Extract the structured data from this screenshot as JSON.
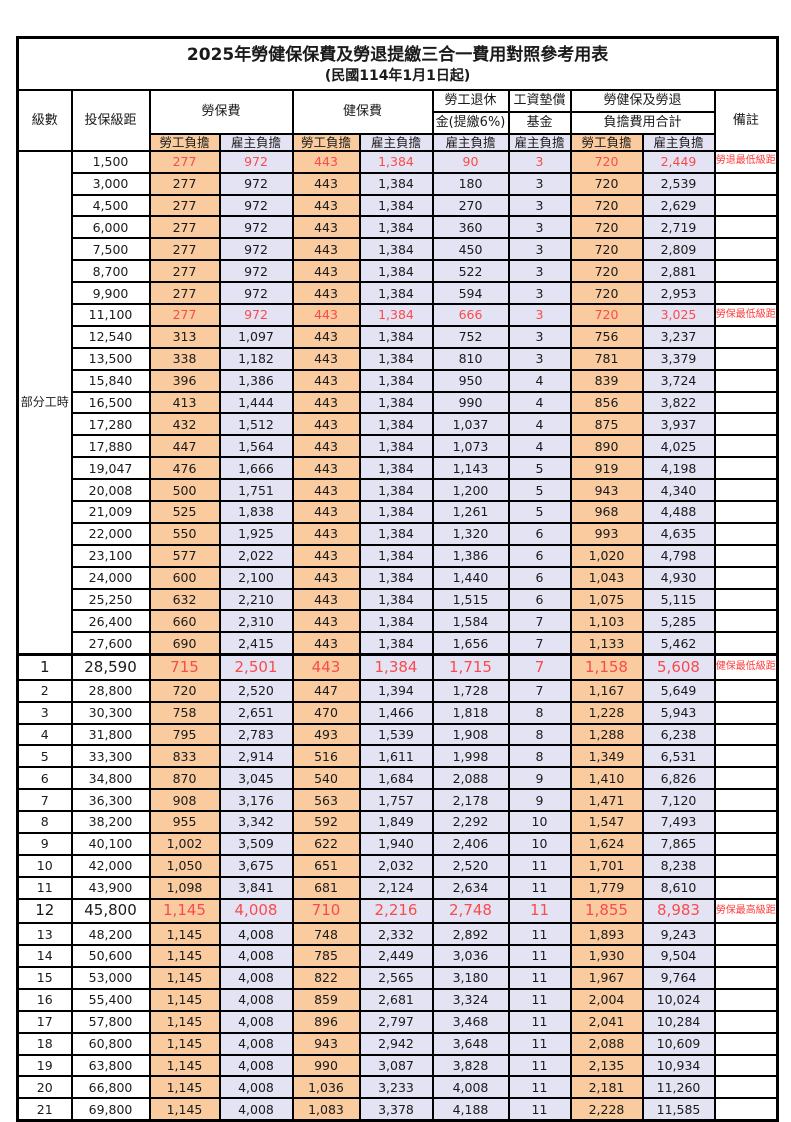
{
  "title": "2025年勞健保保費及勞退提繳三合一費用對照參考用表",
  "subtitle": "(民國114年1月1日起)",
  "header": {
    "level": "級數",
    "bracket": "投保級距",
    "labor_insurance": "勞保費",
    "health_insurance": "健保費",
    "pension_line1": "勞工退休",
    "pension_line2": "金(提繳6%)",
    "wage_fund_line1": "工資墊償",
    "wage_fund_line2": "基金",
    "total_line1": "勞健保及勞退",
    "total_line2": "負擔費用合計",
    "remark": "備註",
    "employee": "勞工負擔",
    "employer": "雇主負擔"
  },
  "part_time_label": "部分工時",
  "colors": {
    "employee_bg": "#F9CB9E",
    "employer_bg": "#E4E3F4",
    "highlight_red": "#FA4B4B",
    "remark_red": "#FF3A3A",
    "border": "#000000"
  },
  "rows": [
    {
      "level": "",
      "bracket": "1,500",
      "li_emp": "277",
      "li_er": "972",
      "hi_emp": "443",
      "hi_er": "1,384",
      "pension": "90",
      "fund": "3",
      "tot_emp": "720",
      "tot_er": "2,449",
      "remark": "勞退最低級距",
      "highlight": true,
      "large": false
    },
    {
      "level": "",
      "bracket": "3,000",
      "li_emp": "277",
      "li_er": "972",
      "hi_emp": "443",
      "hi_er": "1,384",
      "pension": "180",
      "fund": "3",
      "tot_emp": "720",
      "tot_er": "2,539",
      "remark": "",
      "highlight": false,
      "large": false
    },
    {
      "level": "",
      "bracket": "4,500",
      "li_emp": "277",
      "li_er": "972",
      "hi_emp": "443",
      "hi_er": "1,384",
      "pension": "270",
      "fund": "3",
      "tot_emp": "720",
      "tot_er": "2,629",
      "remark": "",
      "highlight": false,
      "large": false
    },
    {
      "level": "",
      "bracket": "6,000",
      "li_emp": "277",
      "li_er": "972",
      "hi_emp": "443",
      "hi_er": "1,384",
      "pension": "360",
      "fund": "3",
      "tot_emp": "720",
      "tot_er": "2,719",
      "remark": "",
      "highlight": false,
      "large": false
    },
    {
      "level": "",
      "bracket": "7,500",
      "li_emp": "277",
      "li_er": "972",
      "hi_emp": "443",
      "hi_er": "1,384",
      "pension": "450",
      "fund": "3",
      "tot_emp": "720",
      "tot_er": "2,809",
      "remark": "",
      "highlight": false,
      "large": false
    },
    {
      "level": "",
      "bracket": "8,700",
      "li_emp": "277",
      "li_er": "972",
      "hi_emp": "443",
      "hi_er": "1,384",
      "pension": "522",
      "fund": "3",
      "tot_emp": "720",
      "tot_er": "2,881",
      "remark": "",
      "highlight": false,
      "large": false
    },
    {
      "level": "",
      "bracket": "9,900",
      "li_emp": "277",
      "li_er": "972",
      "hi_emp": "443",
      "hi_er": "1,384",
      "pension": "594",
      "fund": "3",
      "tot_emp": "720",
      "tot_er": "2,953",
      "remark": "",
      "highlight": false,
      "large": false
    },
    {
      "level": "",
      "bracket": "11,100",
      "li_emp": "277",
      "li_er": "972",
      "hi_emp": "443",
      "hi_er": "1,384",
      "pension": "666",
      "fund": "3",
      "tot_emp": "720",
      "tot_er": "3,025",
      "remark": "勞保最低級距",
      "highlight": true,
      "large": false
    },
    {
      "level": "",
      "bracket": "12,540",
      "li_emp": "313",
      "li_er": "1,097",
      "hi_emp": "443",
      "hi_er": "1,384",
      "pension": "752",
      "fund": "3",
      "tot_emp": "756",
      "tot_er": "3,237",
      "remark": "",
      "highlight": false,
      "large": false
    },
    {
      "level": "",
      "bracket": "13,500",
      "li_emp": "338",
      "li_er": "1,182",
      "hi_emp": "443",
      "hi_er": "1,384",
      "pension": "810",
      "fund": "3",
      "tot_emp": "781",
      "tot_er": "3,379",
      "remark": "",
      "highlight": false,
      "large": false
    },
    {
      "level": "",
      "bracket": "15,840",
      "li_emp": "396",
      "li_er": "1,386",
      "hi_emp": "443",
      "hi_er": "1,384",
      "pension": "950",
      "fund": "4",
      "tot_emp": "839",
      "tot_er": "3,724",
      "remark": "",
      "highlight": false,
      "large": false
    },
    {
      "level": "",
      "bracket": "16,500",
      "li_emp": "413",
      "li_er": "1,444",
      "hi_emp": "443",
      "hi_er": "1,384",
      "pension": "990",
      "fund": "4",
      "tot_emp": "856",
      "tot_er": "3,822",
      "remark": "",
      "highlight": false,
      "large": false
    },
    {
      "level": "",
      "bracket": "17,280",
      "li_emp": "432",
      "li_er": "1,512",
      "hi_emp": "443",
      "hi_er": "1,384",
      "pension": "1,037",
      "fund": "4",
      "tot_emp": "875",
      "tot_er": "3,937",
      "remark": "",
      "highlight": false,
      "large": false
    },
    {
      "level": "",
      "bracket": "17,880",
      "li_emp": "447",
      "li_er": "1,564",
      "hi_emp": "443",
      "hi_er": "1,384",
      "pension": "1,073",
      "fund": "4",
      "tot_emp": "890",
      "tot_er": "4,025",
      "remark": "",
      "highlight": false,
      "large": false
    },
    {
      "level": "",
      "bracket": "19,047",
      "li_emp": "476",
      "li_er": "1,666",
      "hi_emp": "443",
      "hi_er": "1,384",
      "pension": "1,143",
      "fund": "5",
      "tot_emp": "919",
      "tot_er": "4,198",
      "remark": "",
      "highlight": false,
      "large": false
    },
    {
      "level": "",
      "bracket": "20,008",
      "li_emp": "500",
      "li_er": "1,751",
      "hi_emp": "443",
      "hi_er": "1,384",
      "pension": "1,200",
      "fund": "5",
      "tot_emp": "943",
      "tot_er": "4,340",
      "remark": "",
      "highlight": false,
      "large": false
    },
    {
      "level": "",
      "bracket": "21,009",
      "li_emp": "525",
      "li_er": "1,838",
      "hi_emp": "443",
      "hi_er": "1,384",
      "pension": "1,261",
      "fund": "5",
      "tot_emp": "968",
      "tot_er": "4,488",
      "remark": "",
      "highlight": false,
      "large": false
    },
    {
      "level": "",
      "bracket": "22,000",
      "li_emp": "550",
      "li_er": "1,925",
      "hi_emp": "443",
      "hi_er": "1,384",
      "pension": "1,320",
      "fund": "6",
      "tot_emp": "993",
      "tot_er": "4,635",
      "remark": "",
      "highlight": false,
      "large": false
    },
    {
      "level": "",
      "bracket": "23,100",
      "li_emp": "577",
      "li_er": "2,022",
      "hi_emp": "443",
      "hi_er": "1,384",
      "pension": "1,386",
      "fund": "6",
      "tot_emp": "1,020",
      "tot_er": "4,798",
      "remark": "",
      "highlight": false,
      "large": false
    },
    {
      "level": "",
      "bracket": "24,000",
      "li_emp": "600",
      "li_er": "2,100",
      "hi_emp": "443",
      "hi_er": "1,384",
      "pension": "1,440",
      "fund": "6",
      "tot_emp": "1,043",
      "tot_er": "4,930",
      "remark": "",
      "highlight": false,
      "large": false
    },
    {
      "level": "",
      "bracket": "25,250",
      "li_emp": "632",
      "li_er": "2,210",
      "hi_emp": "443",
      "hi_er": "1,384",
      "pension": "1,515",
      "fund": "6",
      "tot_emp": "1,075",
      "tot_er": "5,115",
      "remark": "",
      "highlight": false,
      "large": false
    },
    {
      "level": "",
      "bracket": "26,400",
      "li_emp": "660",
      "li_er": "2,310",
      "hi_emp": "443",
      "hi_er": "1,384",
      "pension": "1,584",
      "fund": "7",
      "tot_emp": "1,103",
      "tot_er": "5,285",
      "remark": "",
      "highlight": false,
      "large": false
    },
    {
      "level": "",
      "bracket": "27,600",
      "li_emp": "690",
      "li_er": "2,415",
      "hi_emp": "443",
      "hi_er": "1,384",
      "pension": "1,656",
      "fund": "7",
      "tot_emp": "1,133",
      "tot_er": "5,462",
      "remark": "",
      "highlight": false,
      "large": false
    },
    {
      "level": "1",
      "bracket": "28,590",
      "li_emp": "715",
      "li_er": "2,501",
      "hi_emp": "443",
      "hi_er": "1,384",
      "pension": "1,715",
      "fund": "7",
      "tot_emp": "1,158",
      "tot_er": "5,608",
      "remark": "健保最低級距",
      "highlight": true,
      "large": true
    },
    {
      "level": "2",
      "bracket": "28,800",
      "li_emp": "720",
      "li_er": "2,520",
      "hi_emp": "447",
      "hi_er": "1,394",
      "pension": "1,728",
      "fund": "7",
      "tot_emp": "1,167",
      "tot_er": "5,649",
      "remark": "",
      "highlight": false,
      "large": false
    },
    {
      "level": "3",
      "bracket": "30,300",
      "li_emp": "758",
      "li_er": "2,651",
      "hi_emp": "470",
      "hi_er": "1,466",
      "pension": "1,818",
      "fund": "8",
      "tot_emp": "1,228",
      "tot_er": "5,943",
      "remark": "",
      "highlight": false,
      "large": false
    },
    {
      "level": "4",
      "bracket": "31,800",
      "li_emp": "795",
      "li_er": "2,783",
      "hi_emp": "493",
      "hi_er": "1,539",
      "pension": "1,908",
      "fund": "8",
      "tot_emp": "1,288",
      "tot_er": "6,238",
      "remark": "",
      "highlight": false,
      "large": false
    },
    {
      "level": "5",
      "bracket": "33,300",
      "li_emp": "833",
      "li_er": "2,914",
      "hi_emp": "516",
      "hi_er": "1,611",
      "pension": "1,998",
      "fund": "8",
      "tot_emp": "1,349",
      "tot_er": "6,531",
      "remark": "",
      "highlight": false,
      "large": false
    },
    {
      "level": "6",
      "bracket": "34,800",
      "li_emp": "870",
      "li_er": "3,045",
      "hi_emp": "540",
      "hi_er": "1,684",
      "pension": "2,088",
      "fund": "9",
      "tot_emp": "1,410",
      "tot_er": "6,826",
      "remark": "",
      "highlight": false,
      "large": false
    },
    {
      "level": "7",
      "bracket": "36,300",
      "li_emp": "908",
      "li_er": "3,176",
      "hi_emp": "563",
      "hi_er": "1,757",
      "pension": "2,178",
      "fund": "9",
      "tot_emp": "1,471",
      "tot_er": "7,120",
      "remark": "",
      "highlight": false,
      "large": false
    },
    {
      "level": "8",
      "bracket": "38,200",
      "li_emp": "955",
      "li_er": "3,342",
      "hi_emp": "592",
      "hi_er": "1,849",
      "pension": "2,292",
      "fund": "10",
      "tot_emp": "1,547",
      "tot_er": "7,493",
      "remark": "",
      "highlight": false,
      "large": false
    },
    {
      "level": "9",
      "bracket": "40,100",
      "li_emp": "1,002",
      "li_er": "3,509",
      "hi_emp": "622",
      "hi_er": "1,940",
      "pension": "2,406",
      "fund": "10",
      "tot_emp": "1,624",
      "tot_er": "7,865",
      "remark": "",
      "highlight": false,
      "large": false
    },
    {
      "level": "10",
      "bracket": "42,000",
      "li_emp": "1,050",
      "li_er": "3,675",
      "hi_emp": "651",
      "hi_er": "2,032",
      "pension": "2,520",
      "fund": "11",
      "tot_emp": "1,701",
      "tot_er": "8,238",
      "remark": "",
      "highlight": false,
      "large": false
    },
    {
      "level": "11",
      "bracket": "43,900",
      "li_emp": "1,098",
      "li_er": "3,841",
      "hi_emp": "681",
      "hi_er": "2,124",
      "pension": "2,634",
      "fund": "11",
      "tot_emp": "1,779",
      "tot_er": "8,610",
      "remark": "",
      "highlight": false,
      "large": false
    },
    {
      "level": "12",
      "bracket": "45,800",
      "li_emp": "1,145",
      "li_er": "4,008",
      "hi_emp": "710",
      "hi_er": "2,216",
      "pension": "2,748",
      "fund": "11",
      "tot_emp": "1,855",
      "tot_er": "8,983",
      "remark": "勞保最高級距",
      "highlight": true,
      "large": true
    },
    {
      "level": "13",
      "bracket": "48,200",
      "li_emp": "1,145",
      "li_er": "4,008",
      "hi_emp": "748",
      "hi_er": "2,332",
      "pension": "2,892",
      "fund": "11",
      "tot_emp": "1,893",
      "tot_er": "9,243",
      "remark": "",
      "highlight": false,
      "large": false
    },
    {
      "level": "14",
      "bracket": "50,600",
      "li_emp": "1,145",
      "li_er": "4,008",
      "hi_emp": "785",
      "hi_er": "2,449",
      "pension": "3,036",
      "fund": "11",
      "tot_emp": "1,930",
      "tot_er": "9,504",
      "remark": "",
      "highlight": false,
      "large": false
    },
    {
      "level": "15",
      "bracket": "53,000",
      "li_emp": "1,145",
      "li_er": "4,008",
      "hi_emp": "822",
      "hi_er": "2,565",
      "pension": "3,180",
      "fund": "11",
      "tot_emp": "1,967",
      "tot_er": "9,764",
      "remark": "",
      "highlight": false,
      "large": false
    },
    {
      "level": "16",
      "bracket": "55,400",
      "li_emp": "1,145",
      "li_er": "4,008",
      "hi_emp": "859",
      "hi_er": "2,681",
      "pension": "3,324",
      "fund": "11",
      "tot_emp": "2,004",
      "tot_er": "10,024",
      "remark": "",
      "highlight": false,
      "large": false
    },
    {
      "level": "17",
      "bracket": "57,800",
      "li_emp": "1,145",
      "li_er": "4,008",
      "hi_emp": "896",
      "hi_er": "2,797",
      "pension": "3,468",
      "fund": "11",
      "tot_emp": "2,041",
      "tot_er": "10,284",
      "remark": "",
      "highlight": false,
      "large": false
    },
    {
      "level": "18",
      "bracket": "60,800",
      "li_emp": "1,145",
      "li_er": "4,008",
      "hi_emp": "943",
      "hi_er": "2,942",
      "pension": "3,648",
      "fund": "11",
      "tot_emp": "2,088",
      "tot_er": "10,609",
      "remark": "",
      "highlight": false,
      "large": false
    },
    {
      "level": "19",
      "bracket": "63,800",
      "li_emp": "1,145",
      "li_er": "4,008",
      "hi_emp": "990",
      "hi_er": "3,087",
      "pension": "3,828",
      "fund": "11",
      "tot_emp": "2,135",
      "tot_er": "10,934",
      "remark": "",
      "highlight": false,
      "large": false
    },
    {
      "level": "20",
      "bracket": "66,800",
      "li_emp": "1,145",
      "li_er": "4,008",
      "hi_emp": "1,036",
      "hi_er": "3,233",
      "pension": "4,008",
      "fund": "11",
      "tot_emp": "2,181",
      "tot_er": "11,260",
      "remark": "",
      "highlight": false,
      "large": false
    },
    {
      "level": "21",
      "bracket": "69,800",
      "li_emp": "1,145",
      "li_er": "4,008",
      "hi_emp": "1,083",
      "hi_er": "3,378",
      "pension": "4,188",
      "fund": "11",
      "tot_emp": "2,228",
      "tot_er": "11,585",
      "remark": "",
      "highlight": false,
      "large": false
    }
  ]
}
